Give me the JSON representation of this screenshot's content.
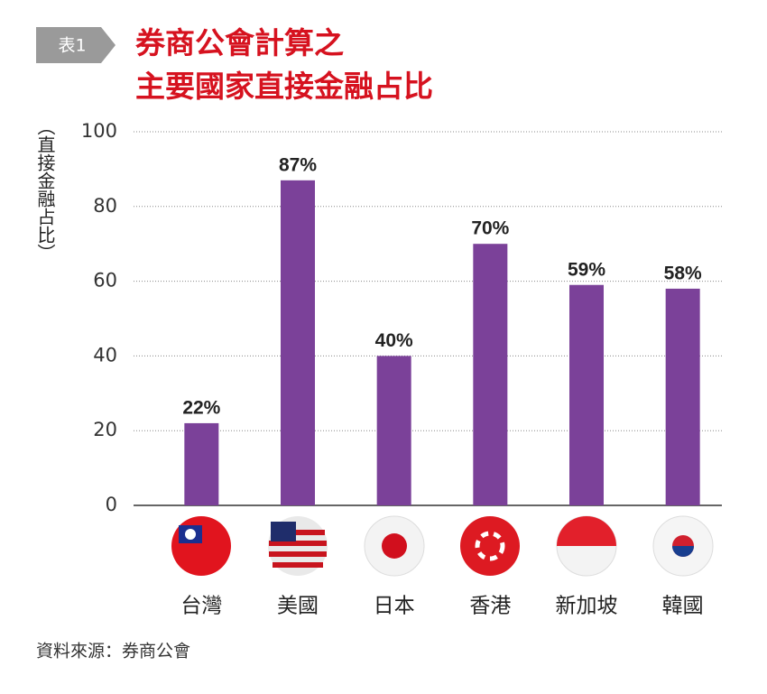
{
  "chart_data": {
    "type": "bar",
    "table_label": "表1",
    "title": [
      "券商公會計算之",
      "主要國家直接金融占比"
    ],
    "ylabel": "（直接金融占比）",
    "categories": [
      "台灣",
      "美國",
      "日本",
      "香港",
      "新加坡",
      "韓國"
    ],
    "values": [
      22,
      87,
      40,
      70,
      59,
      58
    ],
    "value_labels": [
      "22%",
      "87%",
      "40%",
      "70%",
      "59%",
      "58%"
    ],
    "color": "#7b4199",
    "ylim": [
      0,
      100
    ],
    "yticks": [
      0,
      20,
      40,
      60,
      80,
      100
    ],
    "grid": true,
    "source": "資料來源：券商公會"
  }
}
